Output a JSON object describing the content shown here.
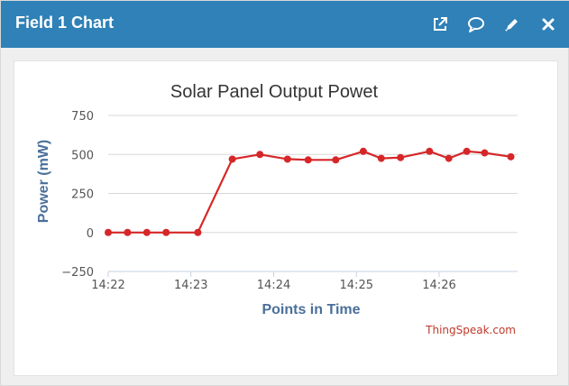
{
  "header": {
    "title": "Field 1 Chart",
    "icons": [
      "external-link-icon",
      "comment-icon",
      "pencil-icon",
      "close-icon"
    ]
  },
  "colors": {
    "header_bg": "#2f81b7",
    "series": "#d62728",
    "axis_label": "#4a6f99",
    "credit": "#c0392b",
    "grid": "#d8d8d8"
  },
  "chart_data": {
    "type": "line",
    "title": "Solar Panel Output Powet",
    "xlabel": "Points in Time",
    "ylabel": "Power (mW)",
    "ylim": [
      -250,
      750
    ],
    "yticks": [
      750,
      500,
      250,
      0,
      -250
    ],
    "ytick_labels": [
      "750",
      "500",
      "250",
      "0",
      "−250"
    ],
    "xticks": [
      "14:22",
      "14:23",
      "14:24",
      "14:25",
      "14:26"
    ],
    "grid": true,
    "legend": false,
    "credit": "ThingSpeak.com",
    "series": [
      {
        "color": "#d62728",
        "points": [
          {
            "x": "14:22:00",
            "y": 0
          },
          {
            "x": "14:22:14",
            "y": 0
          },
          {
            "x": "14:22:28",
            "y": 0
          },
          {
            "x": "14:22:42",
            "y": 0
          },
          {
            "x": "14:23:05",
            "y": 0
          },
          {
            "x": "14:23:30",
            "y": 470
          },
          {
            "x": "14:23:50",
            "y": 500
          },
          {
            "x": "14:24:10",
            "y": 470
          },
          {
            "x": "14:24:25",
            "y": 465
          },
          {
            "x": "14:24:45",
            "y": 465
          },
          {
            "x": "14:25:05",
            "y": 520
          },
          {
            "x": "14:25:18",
            "y": 475
          },
          {
            "x": "14:25:32",
            "y": 480
          },
          {
            "x": "14:25:53",
            "y": 520
          },
          {
            "x": "14:26:07",
            "y": 475
          },
          {
            "x": "14:26:20",
            "y": 520
          },
          {
            "x": "14:26:33",
            "y": 510
          },
          {
            "x": "14:26:52",
            "y": 485
          }
        ]
      }
    ]
  }
}
